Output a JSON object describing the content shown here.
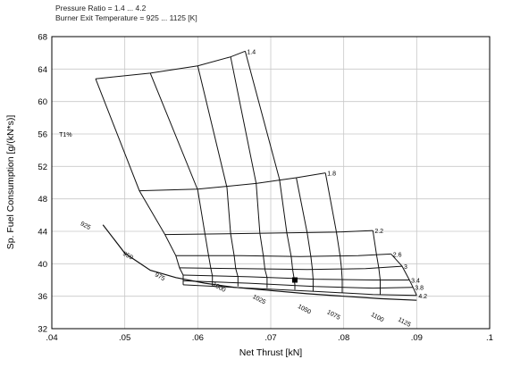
{
  "header": {
    "line1": "Pressure Ratio = 1.4 ... 4.2",
    "line2": "Burner Exit Temperature = 925 ... 1125 [K]"
  },
  "chart_data": {
    "type": "line",
    "title": "",
    "xlabel": "Net Thrust [kN]",
    "ylabel": "Sp. Fuel Consumption [g/(kN*s)]",
    "xlim": [
      0.04,
      0.1
    ],
    "ylim": [
      32,
      68
    ],
    "x_ticks": [
      0.04,
      0.05,
      0.06,
      0.07,
      0.08,
      0.09,
      0.1
    ],
    "x_tick_labels": [
      ".04",
      ".05",
      ".06",
      ".07",
      ".08",
      ".09",
      ".1"
    ],
    "y_ticks": [
      32,
      36,
      40,
      44,
      48,
      52,
      56,
      60,
      64,
      68
    ],
    "y_tick_labels": [
      "32",
      "36",
      "40",
      "44",
      "48",
      "52",
      "56",
      "60",
      "64",
      "68"
    ],
    "grid": true,
    "annotations": [
      {
        "text": "T1%",
        "x": 0.041,
        "y": 56
      }
    ],
    "pressure_ratio_lines": [
      {
        "label": "1.4",
        "x": [
          0.046,
          0.0535,
          0.06,
          0.0645,
          0.0665
        ],
        "y": [
          62.8,
          63.5,
          64.4,
          65.5,
          66.2
        ]
      },
      {
        "label": "1.8",
        "x": [
          0.052,
          0.06,
          0.068,
          0.0735,
          0.0775
        ],
        "y": [
          49.0,
          49.2,
          49.9,
          50.6,
          51.2
        ]
      },
      {
        "label": "2.2",
        "x": [
          0.0555,
          0.064,
          0.072,
          0.079,
          0.084
        ],
        "y": [
          43.6,
          43.7,
          43.8,
          43.9,
          44.1
        ]
      },
      {
        "label": "2.6",
        "x": [
          0.057,
          0.066,
          0.074,
          0.082,
          0.0865
        ],
        "y": [
          41.0,
          41.0,
          40.9,
          41.0,
          41.2
        ]
      },
      {
        "label": "3",
        "x": [
          0.0575,
          0.066,
          0.075,
          0.083,
          0.088
        ],
        "y": [
          39.5,
          39.4,
          39.3,
          39.4,
          39.7
        ]
      },
      {
        "label": "3.4",
        "x": [
          0.058,
          0.067,
          0.076,
          0.084,
          0.089
        ],
        "y": [
          38.6,
          38.4,
          38.1,
          38.0,
          38.0
        ]
      },
      {
        "label": "3.8",
        "x": [
          0.058,
          0.067,
          0.076,
          0.084,
          0.0895
        ],
        "y": [
          37.9,
          37.6,
          37.2,
          37.0,
          37.1
        ]
      },
      {
        "label": "4.2",
        "x": [
          0.058,
          0.067,
          0.076,
          0.084,
          0.09
        ],
        "y": [
          37.4,
          37.0,
          36.6,
          36.2,
          36.1
        ]
      }
    ],
    "temperature_lines": [
      {
        "label": "925",
        "label_at": [
          0.0445,
          44.5
        ],
        "x": [
          0.046,
          0.052,
          0.0555,
          0.057,
          0.0575,
          0.058,
          0.058,
          0.058
        ],
        "y": [
          62.8,
          49.0,
          43.6,
          41.0,
          39.5,
          38.6,
          37.9,
          37.4
        ]
      },
      {
        "label": "950",
        "label_at": [
          0.0503,
          40.8
        ],
        "x": [
          0.0535,
          0.06,
          0.061,
          0.0615,
          0.0618,
          0.062,
          0.062,
          0.062
        ],
        "y": [
          63.5,
          49.1,
          43.6,
          40.9,
          39.4,
          38.5,
          37.8,
          37.3
        ]
      },
      {
        "label": "975",
        "label_at": [
          0.0547,
          38.2
        ],
        "x": [
          0.06,
          0.064,
          0.0645,
          0.065,
          0.0652,
          0.0655,
          0.0655,
          0.0655
        ],
        "y": [
          64.4,
          49.4,
          43.7,
          40.9,
          39.4,
          38.4,
          37.7,
          37.2
        ]
      },
      {
        "label": "1000",
        "label_at": [
          0.0628,
          36.9
        ],
        "x": [
          0.0645,
          0.068,
          0.0685,
          0.069,
          0.0692,
          0.0695,
          0.0695,
          0.0695
        ],
        "y": [
          65.5,
          49.9,
          43.8,
          40.9,
          39.3,
          38.3,
          37.6,
          37.0
        ]
      },
      {
        "label": "1025",
        "label_at": [
          0.0683,
          35.4
        ],
        "x": [
          0.0665,
          0.0712,
          0.0722,
          0.0728,
          0.073,
          0.0732,
          0.0733,
          0.0733
        ],
        "y": [
          66.2,
          50.4,
          43.8,
          40.9,
          39.3,
          38.2,
          37.4,
          36.8
        ]
      },
      {
        "label": "1050",
        "label_at": [
          0.0745,
          34.2
        ],
        "x": [
          0.0735,
          0.075,
          0.0755,
          0.0757,
          0.0758,
          0.0758,
          0.0758
        ],
        "y": [
          50.6,
          43.8,
          40.9,
          39.3,
          38.1,
          37.3,
          36.6
        ]
      },
      {
        "label": "1075",
        "label_at": [
          0.0785,
          33.5
        ],
        "x": [
          0.0775,
          0.079,
          0.0795,
          0.0797,
          0.0798,
          0.0798,
          0.0798
        ],
        "y": [
          51.2,
          43.9,
          41.0,
          39.4,
          38.0,
          37.1,
          36.4
        ]
      },
      {
        "label": "1100",
        "label_at": [
          0.0845,
          33.2
        ],
        "x": [
          0.084,
          0.0845,
          0.0848,
          0.085,
          0.085,
          0.085
        ],
        "y": [
          44.1,
          41.1,
          39.5,
          38.0,
          37.0,
          36.2
        ]
      },
      {
        "label": "1125",
        "label_at": [
          0.0882,
          32.6
        ],
        "x": [
          0.0865,
          0.088,
          0.089,
          0.0895,
          0.09
        ],
        "y": [
          41.2,
          39.7,
          38.0,
          37.1,
          36.1
        ]
      }
    ],
    "optimum_curve": {
      "x": [
        0.047,
        0.05,
        0.0535,
        0.057,
        0.061,
        0.065,
        0.07,
        0.075,
        0.08,
        0.085,
        0.09
      ],
      "y": [
        44.8,
        41.3,
        39.2,
        38.3,
        37.6,
        37.1,
        36.7,
        36.3,
        36.0,
        35.7,
        35.5
      ]
    },
    "design_point": {
      "x": 0.0733,
      "y": 38.0
    }
  }
}
